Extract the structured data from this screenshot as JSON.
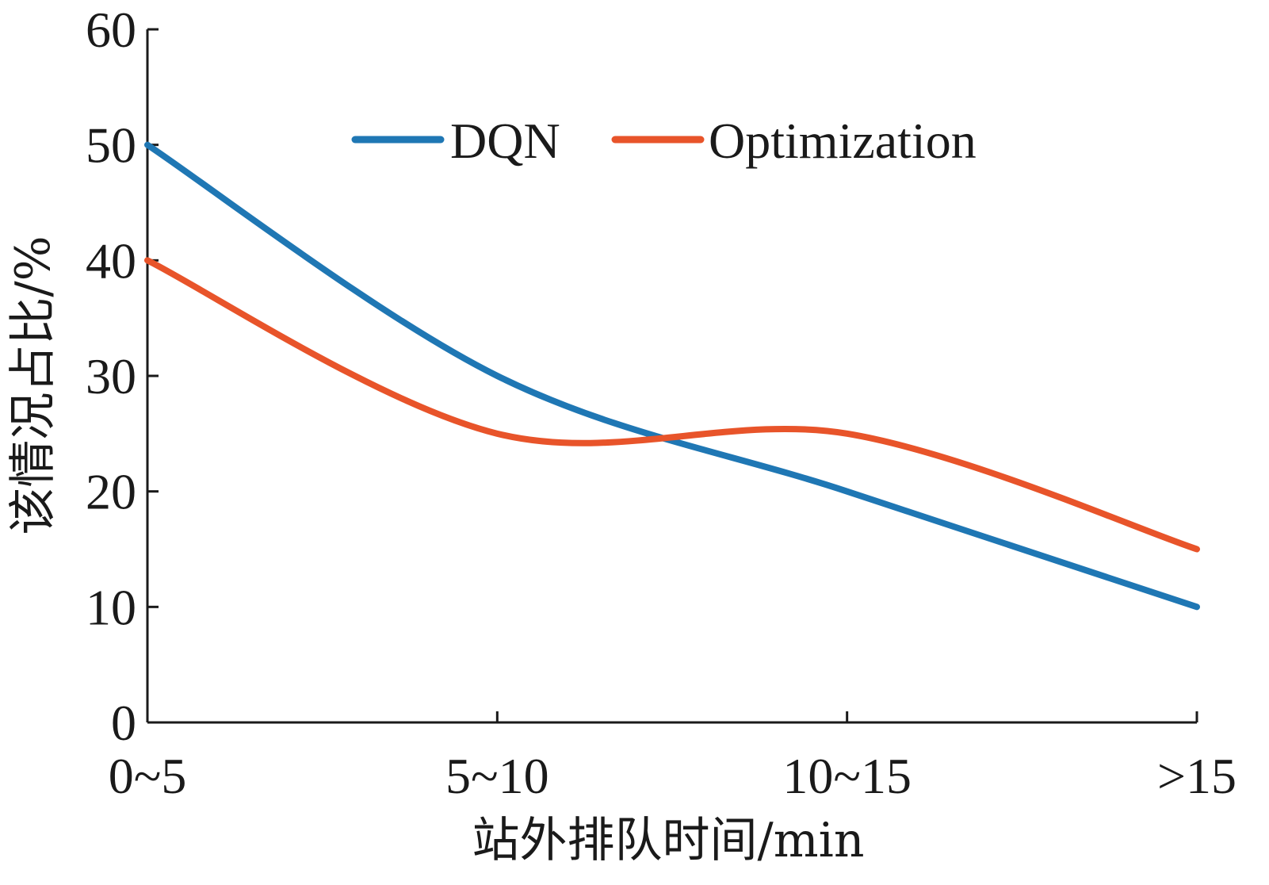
{
  "chart_data": {
    "type": "line",
    "title": "",
    "xlabel": "站外排队时间/min",
    "ylabel": "该情况占比/%",
    "categories": [
      "0~5",
      "5~10",
      "10~15",
      ">15"
    ],
    "yticks": [
      "0",
      "10",
      "20",
      "30",
      "40",
      "50",
      "60"
    ],
    "ylim": [
      0,
      60
    ],
    "grid": false,
    "legend_position": "top-center",
    "series": [
      {
        "name": "DQN",
        "color": "#1f77b4",
        "values": [
          50,
          30,
          20,
          10
        ]
      },
      {
        "name": "Optimization",
        "color": "#e8542a",
        "values": [
          40,
          25,
          25,
          15
        ]
      }
    ]
  }
}
